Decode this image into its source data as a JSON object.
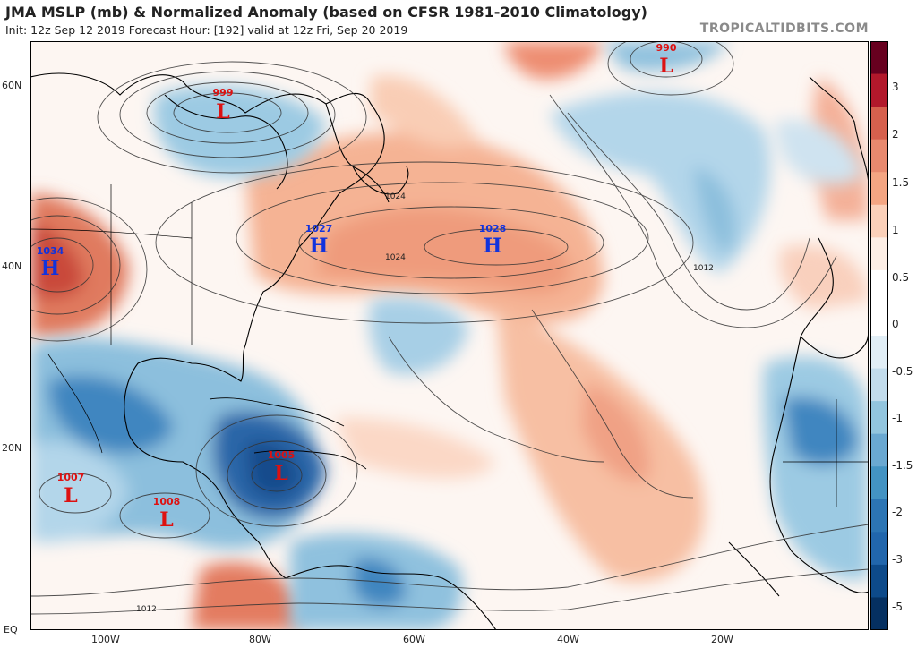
{
  "header": {
    "title": "JMA MSLP (mb) & Normalized Anomaly (based on CFSR 1981-2010 Climatology)",
    "subtitle": "Init: 12z Sep 12 2019   Forecast Hour: [192]   valid at 12z Fri, Sep 20 2019",
    "brand": "TROPICALTIDBITS.COM"
  },
  "axes": {
    "lat_labels": [
      {
        "id": "60n",
        "text": "60N"
      },
      {
        "id": "40n",
        "text": "40N"
      },
      {
        "id": "20n",
        "text": "20N"
      },
      {
        "id": "eq",
        "text": "EQ"
      }
    ],
    "lon_labels": [
      {
        "id": "100w",
        "text": "100W"
      },
      {
        "id": "80w",
        "text": "80W"
      },
      {
        "id": "60w",
        "text": "60W"
      },
      {
        "id": "40w",
        "text": "40W"
      },
      {
        "id": "20w",
        "text": "20W"
      }
    ]
  },
  "colorbar": {
    "ticks": [
      "3",
      "2",
      "1.5",
      "1",
      "0.5",
      "0",
      "-0.5",
      "-1",
      "-1.5",
      "-2",
      "-3",
      "-5"
    ],
    "colors": [
      "#67001f",
      "#b2182b",
      "#d6604d",
      "#e8896e",
      "#f4a582",
      "#fbd0b9",
      "#fdeee5",
      "#ffffff",
      "#ffffff",
      "#e1eef6",
      "#c2dcec",
      "#92c5de",
      "#6aa8d1",
      "#4393c3",
      "#2c75b4",
      "#2166ac",
      "#0d4a8a",
      "#053061"
    ]
  },
  "pressure_centers": [
    {
      "id": "low-999",
      "type": "L",
      "value": "999",
      "color": "#dd1111"
    },
    {
      "id": "low-990",
      "type": "L",
      "value": "990",
      "color": "#dd1111"
    },
    {
      "id": "high-1034",
      "type": "H",
      "value": "1034",
      "color": "#1133dd"
    },
    {
      "id": "high-1027",
      "type": "H",
      "value": "1027",
      "color": "#1133dd"
    },
    {
      "id": "high-1028",
      "type": "H",
      "value": "1028",
      "color": "#1133dd"
    },
    {
      "id": "low-1005",
      "type": "L",
      "value": "1005",
      "color": "#dd1111"
    },
    {
      "id": "low-1007",
      "type": "L",
      "value": "1007",
      "color": "#dd1111"
    },
    {
      "id": "low-1008",
      "type": "L",
      "value": "1008",
      "color": "#dd1111"
    }
  ],
  "contour_labels": [
    "1024",
    "1024",
    "1012",
    "1012"
  ]
}
